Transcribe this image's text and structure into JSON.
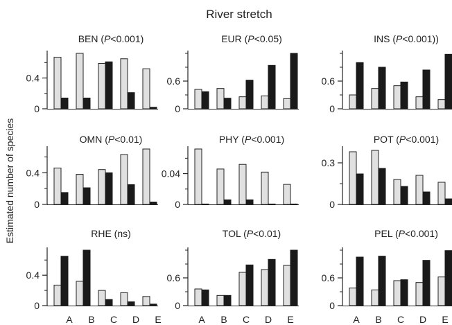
{
  "figure": {
    "title": "River stretch",
    "ylabel": "Estimated number of species",
    "colors": {
      "bar_light": "#e0e0e0",
      "bar_dark": "#1a1a1a",
      "outline": "#222222",
      "axis": "#222222"
    }
  },
  "chart_data": [
    {
      "type": "bar",
      "title": "BEN (P<0.001)",
      "title_pre": "BEN (",
      "title_italic": "P",
      "title_post": "<0.001)",
      "categories": [
        "A",
        "B",
        "C",
        "D",
        "E"
      ],
      "ylim": [
        0,
        0.72
      ],
      "ticks": [
        0,
        0.4
      ],
      "tick_labels": [
        "0",
        "0.4"
      ],
      "series": [
        {
          "values": [
            0.67,
            0.72,
            0.59,
            0.65,
            0.52
          ]
        },
        {
          "values": [
            0.14,
            0.14,
            0.61,
            0.21,
            0.02
          ]
        }
      ]
    },
    {
      "type": "bar",
      "title": "EUR (P<0.05)",
      "title_pre": "EUR (",
      "title_italic": "P",
      "title_post": "<0.05)",
      "categories": [
        "A",
        "B",
        "C",
        "D",
        "E"
      ],
      "ylim": [
        0,
        1.2
      ],
      "ticks": [
        0,
        0.6
      ],
      "tick_labels": [
        "0",
        "0.6"
      ],
      "series": [
        {
          "values": [
            0.42,
            0.44,
            0.26,
            0.28,
            0.22
          ]
        },
        {
          "values": [
            0.37,
            0.23,
            0.62,
            0.94,
            1.2
          ]
        }
      ]
    },
    {
      "type": "bar",
      "title": "INS (P<0.001))",
      "title_pre": "INS (",
      "title_italic": "P",
      "title_post": "<0.001))",
      "categories": [
        "A",
        "B",
        "C",
        "D",
        "E"
      ],
      "ylim": [
        0,
        1.2
      ],
      "ticks": [
        0,
        0.6
      ],
      "tick_labels": [
        "0",
        "0.6"
      ],
      "series": [
        {
          "values": [
            0.3,
            0.44,
            0.5,
            0.26,
            0.2
          ]
        },
        {
          "values": [
            1.0,
            0.9,
            0.58,
            0.84,
            1.18
          ]
        }
      ]
    },
    {
      "type": "bar",
      "title": "OMN (P<0.01)",
      "title_pre": "OMN (",
      "title_italic": "P",
      "title_post": "<0.01)",
      "categories": [
        "A",
        "B",
        "C",
        "D",
        "E"
      ],
      "ylim": [
        0,
        0.7
      ],
      "ticks": [
        0,
        0.4
      ],
      "tick_labels": [
        "0",
        "0.4"
      ],
      "series": [
        {
          "values": [
            0.46,
            0.38,
            0.44,
            0.63,
            0.7
          ]
        },
        {
          "values": [
            0.15,
            0.21,
            0.4,
            0.25,
            0.03
          ]
        }
      ]
    },
    {
      "type": "bar",
      "title": "PHY (P<0.001)",
      "title_pre": "PHY (",
      "title_italic": "P",
      "title_post": "<0.001)",
      "categories": [
        "A",
        "B",
        "C",
        "D",
        "E"
      ],
      "ylim": [
        0,
        0.072
      ],
      "ticks": [
        0,
        0.04
      ],
      "tick_labels": [
        "0",
        "0.04"
      ],
      "series": [
        {
          "values": [
            0.072,
            0.046,
            0.052,
            0.042,
            0.026
          ]
        },
        {
          "values": [
            0.0,
            0.006,
            0.006,
            0.0,
            0.0
          ]
        }
      ]
    },
    {
      "type": "bar",
      "title": "POT (P<0.001)",
      "title_pre": "POT (",
      "title_italic": "P",
      "title_post": "<0.001)",
      "categories": [
        "A",
        "B",
        "C",
        "D",
        "E"
      ],
      "ylim": [
        0,
        0.4
      ],
      "ticks": [
        0,
        0.3
      ],
      "tick_labels": [
        "0",
        "0.3"
      ],
      "series": [
        {
          "values": [
            0.38,
            0.39,
            0.18,
            0.21,
            0.16
          ]
        },
        {
          "values": [
            0.22,
            0.26,
            0.13,
            0.09,
            0.04
          ]
        }
      ]
    },
    {
      "type": "bar",
      "title": "RHE (ns)",
      "title_pre": "RHE (ns)",
      "title_italic": "",
      "title_post": "",
      "categories": [
        "A",
        "B",
        "C",
        "D",
        "E"
      ],
      "ylim": [
        0,
        0.73
      ],
      "ticks": [
        0,
        0.4
      ],
      "tick_labels": [
        "0",
        "0.4"
      ],
      "series": [
        {
          "values": [
            0.27,
            0.32,
            0.2,
            0.17,
            0.12
          ]
        },
        {
          "values": [
            0.65,
            0.73,
            0.08,
            0.05,
            0.02
          ]
        }
      ]
    },
    {
      "type": "bar",
      "title": "TOL (P<0.01)",
      "title_pre": "TOL (",
      "title_italic": "P",
      "title_post": "<0.01)",
      "categories": [
        "A",
        "B",
        "C",
        "D",
        "E"
      ],
      "ylim": [
        0,
        1.2
      ],
      "ticks": [
        0,
        0.6
      ],
      "tick_labels": [
        "0",
        "0.6"
      ],
      "series": [
        {
          "values": [
            0.36,
            0.22,
            0.72,
            0.78,
            0.87
          ]
        },
        {
          "values": [
            0.34,
            0.22,
            0.88,
            1.0,
            1.2
          ]
        }
      ]
    },
    {
      "type": "bar",
      "title": "PEL (P<0.001)",
      "title_pre": "PEL (",
      "title_italic": "P",
      "title_post": "<0.001)",
      "categories": [
        "A",
        "B",
        "C",
        "D",
        "E"
      ],
      "ylim": [
        0,
        1.2
      ],
      "ticks": [
        0,
        0.6
      ],
      "tick_labels": [
        "0",
        "0.6"
      ],
      "series": [
        {
          "values": [
            0.38,
            0.34,
            0.54,
            0.5,
            0.62
          ]
        },
        {
          "values": [
            1.05,
            1.07,
            0.56,
            0.98,
            1.19
          ]
        }
      ]
    }
  ]
}
